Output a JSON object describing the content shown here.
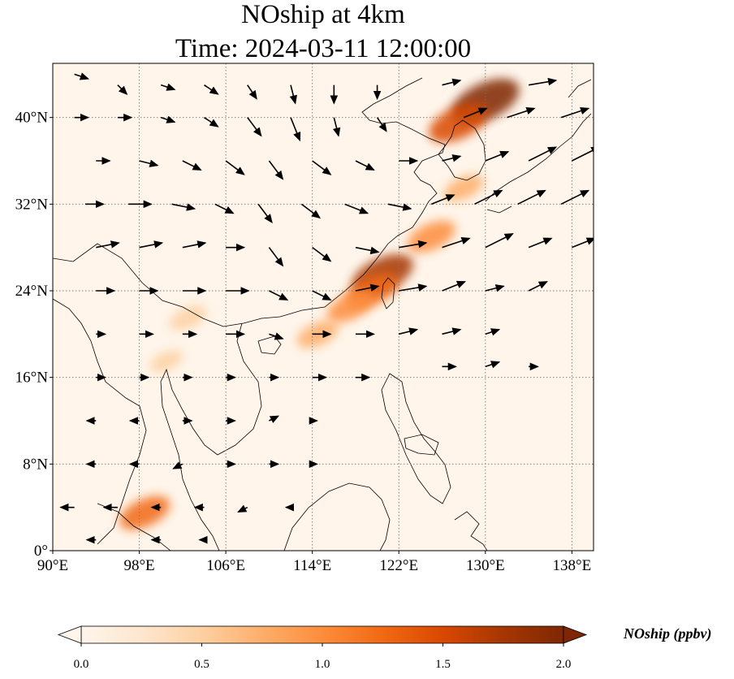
{
  "title": {
    "line1": "NOship at 4km",
    "line2": "Time: 2024-03-11 12:00:00"
  },
  "map": {
    "extent": {
      "lon": [
        90,
        140
      ],
      "lat": [
        0,
        45
      ]
    },
    "lon_ticks": [
      {
        "value": 90,
        "label": "90°E"
      },
      {
        "value": 98,
        "label": "98°E"
      },
      {
        "value": 106,
        "label": "106°E"
      },
      {
        "value": 114,
        "label": "114°E"
      },
      {
        "value": 122,
        "label": "122°E"
      },
      {
        "value": 130,
        "label": "130°E"
      },
      {
        "value": 138,
        "label": "138°E"
      }
    ],
    "lat_ticks": [
      {
        "value": 0,
        "label": "0°"
      },
      {
        "value": 8,
        "label": "8°N"
      },
      {
        "value": 16,
        "label": "16°N"
      },
      {
        "value": 24,
        "label": "24°N"
      },
      {
        "value": 32,
        "label": "32°N"
      },
      {
        "value": 40,
        "label": "40°N"
      }
    ],
    "gridlines": true,
    "field_variable": "NOship",
    "background_color": "#fff5ea",
    "hotspots": [
      {
        "lon": 130.0,
        "lat": 41.5,
        "value": 2.0
      },
      {
        "lon": 127.5,
        "lat": 39.5,
        "value": 1.6
      },
      {
        "lon": 120.5,
        "lat": 25.5,
        "value": 1.7
      },
      {
        "lon": 119.5,
        "lat": 24.0,
        "value": 1.3
      },
      {
        "lon": 117.5,
        "lat": 22.5,
        "value": 1.0
      },
      {
        "lon": 114.5,
        "lat": 20.0,
        "value": 0.8
      },
      {
        "lon": 125.0,
        "lat": 29.0,
        "value": 1.1
      },
      {
        "lon": 128.0,
        "lat": 33.5,
        "value": 0.7
      },
      {
        "lon": 98.5,
        "lat": 3.5,
        "value": 1.2
      },
      {
        "lon": 102.5,
        "lat": 21.5,
        "value": 0.6
      },
      {
        "lon": 100.5,
        "lat": 17.5,
        "value": 0.4
      }
    ],
    "wind_vectors": [
      {
        "lon": 92,
        "lat": 44,
        "u": 3,
        "v": -1
      },
      {
        "lon": 96,
        "lat": 43,
        "u": 2,
        "v": -2
      },
      {
        "lon": 100,
        "lat": 43,
        "u": 3,
        "v": -1
      },
      {
        "lon": 104,
        "lat": 43,
        "u": 3,
        "v": -2
      },
      {
        "lon": 108,
        "lat": 43,
        "u": 2,
        "v": -3
      },
      {
        "lon": 112,
        "lat": 43,
        "u": 1,
        "v": -4
      },
      {
        "lon": 116,
        "lat": 43,
        "u": 0,
        "v": -4
      },
      {
        "lon": 120,
        "lat": 43,
        "u": 0,
        "v": -3
      },
      {
        "lon": 126,
        "lat": 43,
        "u": 4,
        "v": 1
      },
      {
        "lon": 134,
        "lat": 43,
        "u": 6,
        "v": 1
      },
      {
        "lon": 92,
        "lat": 40,
        "u": 3,
        "v": 0
      },
      {
        "lon": 96,
        "lat": 40,
        "u": 3,
        "v": 0
      },
      {
        "lon": 100,
        "lat": 40,
        "u": 3,
        "v": -1
      },
      {
        "lon": 104,
        "lat": 40,
        "u": 3,
        "v": -2
      },
      {
        "lon": 108,
        "lat": 40,
        "u": 3,
        "v": -4
      },
      {
        "lon": 112,
        "lat": 40,
        "u": 2,
        "v": -5
      },
      {
        "lon": 116,
        "lat": 40,
        "u": 1,
        "v": -4
      },
      {
        "lon": 120,
        "lat": 40,
        "u": 2,
        "v": -3
      },
      {
        "lon": 128,
        "lat": 40,
        "u": 5,
        "v": 2
      },
      {
        "lon": 132,
        "lat": 40,
        "u": 6,
        "v": 2
      },
      {
        "lon": 137,
        "lat": 40,
        "u": 6,
        "v": 2
      },
      {
        "lon": 94,
        "lat": 36,
        "u": 3,
        "v": 0
      },
      {
        "lon": 98,
        "lat": 36,
        "u": 4,
        "v": -1
      },
      {
        "lon": 102,
        "lat": 36,
        "u": 4,
        "v": -2
      },
      {
        "lon": 106,
        "lat": 36,
        "u": 4,
        "v": -3
      },
      {
        "lon": 110,
        "lat": 36,
        "u": 3,
        "v": -4
      },
      {
        "lon": 114,
        "lat": 36,
        "u": 4,
        "v": -3
      },
      {
        "lon": 118,
        "lat": 36,
        "u": 4,
        "v": -2
      },
      {
        "lon": 122,
        "lat": 36,
        "u": 4,
        "v": 0
      },
      {
        "lon": 126,
        "lat": 36,
        "u": 4,
        "v": 1
      },
      {
        "lon": 130,
        "lat": 36,
        "u": 5,
        "v": 2
      },
      {
        "lon": 134,
        "lat": 36,
        "u": 6,
        "v": 3
      },
      {
        "lon": 138,
        "lat": 36,
        "u": 6,
        "v": 3
      },
      {
        "lon": 93,
        "lat": 32,
        "u": 4,
        "v": 0
      },
      {
        "lon": 97,
        "lat": 32,
        "u": 5,
        "v": 0
      },
      {
        "lon": 101,
        "lat": 32,
        "u": 5,
        "v": -1
      },
      {
        "lon": 105,
        "lat": 32,
        "u": 4,
        "v": -2
      },
      {
        "lon": 109,
        "lat": 32,
        "u": 3,
        "v": -4
      },
      {
        "lon": 113,
        "lat": 32,
        "u": 4,
        "v": -3
      },
      {
        "lon": 117,
        "lat": 32,
        "u": 5,
        "v": -2
      },
      {
        "lon": 121,
        "lat": 32,
        "u": 5,
        "v": -1
      },
      {
        "lon": 125,
        "lat": 32,
        "u": 5,
        "v": 2
      },
      {
        "lon": 129,
        "lat": 32,
        "u": 6,
        "v": 3
      },
      {
        "lon": 133,
        "lat": 32,
        "u": 6,
        "v": 3
      },
      {
        "lon": 137,
        "lat": 32,
        "u": 6,
        "v": 3
      },
      {
        "lon": 94,
        "lat": 28,
        "u": 5,
        "v": 1
      },
      {
        "lon": 98,
        "lat": 28,
        "u": 5,
        "v": 1
      },
      {
        "lon": 102,
        "lat": 28,
        "u": 5,
        "v": 1
      },
      {
        "lon": 106,
        "lat": 28,
        "u": 4,
        "v": 0
      },
      {
        "lon": 110,
        "lat": 28,
        "u": 3,
        "v": -4
      },
      {
        "lon": 114,
        "lat": 28,
        "u": 4,
        "v": -3
      },
      {
        "lon": 118,
        "lat": 28,
        "u": 5,
        "v": -1
      },
      {
        "lon": 122,
        "lat": 28,
        "u": 6,
        "v": 1
      },
      {
        "lon": 126,
        "lat": 28,
        "u": 6,
        "v": 2
      },
      {
        "lon": 130,
        "lat": 28,
        "u": 6,
        "v": 3
      },
      {
        "lon": 134,
        "lat": 28,
        "u": 5,
        "v": 2
      },
      {
        "lon": 138,
        "lat": 28,
        "u": 5,
        "v": 2
      },
      {
        "lon": 94,
        "lat": 24,
        "u": 4,
        "v": 0
      },
      {
        "lon": 98,
        "lat": 24,
        "u": 4,
        "v": 0
      },
      {
        "lon": 102,
        "lat": 24,
        "u": 5,
        "v": 0
      },
      {
        "lon": 106,
        "lat": 24,
        "u": 5,
        "v": 0
      },
      {
        "lon": 110,
        "lat": 24,
        "u": 4,
        "v": -2
      },
      {
        "lon": 114,
        "lat": 24,
        "u": 4,
        "v": -2
      },
      {
        "lon": 118,
        "lat": 24,
        "u": 5,
        "v": 1
      },
      {
        "lon": 122,
        "lat": 24,
        "u": 6,
        "v": 1
      },
      {
        "lon": 126,
        "lat": 24,
        "u": 5,
        "v": 2
      },
      {
        "lon": 130,
        "lat": 24,
        "u": 4,
        "v": 1
      },
      {
        "lon": 134,
        "lat": 24,
        "u": 4,
        "v": 2
      },
      {
        "lon": 94,
        "lat": 20,
        "u": 2,
        "v": 0
      },
      {
        "lon": 98,
        "lat": 20,
        "u": 3,
        "v": 0
      },
      {
        "lon": 102,
        "lat": 20,
        "u": 3,
        "v": 0
      },
      {
        "lon": 106,
        "lat": 20,
        "u": 4,
        "v": 0
      },
      {
        "lon": 110,
        "lat": 20,
        "u": 3,
        "v": -1
      },
      {
        "lon": 114,
        "lat": 20,
        "u": 4,
        "v": 0
      },
      {
        "lon": 118,
        "lat": 20,
        "u": 4,
        "v": 0
      },
      {
        "lon": 122,
        "lat": 20,
        "u": 4,
        "v": 1
      },
      {
        "lon": 126,
        "lat": 20,
        "u": 4,
        "v": 1
      },
      {
        "lon": 130,
        "lat": 20,
        "u": 3,
        "v": 1
      },
      {
        "lon": 94,
        "lat": 16,
        "u": 2,
        "v": 0
      },
      {
        "lon": 98,
        "lat": 16,
        "u": 2,
        "v": 0
      },
      {
        "lon": 102,
        "lat": 16,
        "u": 2,
        "v": 0
      },
      {
        "lon": 106,
        "lat": 16,
        "u": 2,
        "v": 0
      },
      {
        "lon": 110,
        "lat": 16,
        "u": 2,
        "v": 0
      },
      {
        "lon": 114,
        "lat": 16,
        "u": 3,
        "v": 0
      },
      {
        "lon": 118,
        "lat": 16,
        "u": 3,
        "v": 0
      },
      {
        "lon": 126,
        "lat": 17,
        "u": 3,
        "v": 0
      },
      {
        "lon": 130,
        "lat": 17,
        "u": 3,
        "v": 1
      },
      {
        "lon": 134,
        "lat": 17,
        "u": 2,
        "v": 0
      },
      {
        "lon": 94,
        "lat": 12,
        "u": -2,
        "v": 0
      },
      {
        "lon": 98,
        "lat": 12,
        "u": -2,
        "v": 0
      },
      {
        "lon": 102,
        "lat": 12,
        "u": 2,
        "v": 0
      },
      {
        "lon": 106,
        "lat": 12,
        "u": 2,
        "v": 0
      },
      {
        "lon": 110,
        "lat": 12,
        "u": 2,
        "v": 1
      },
      {
        "lon": 114,
        "lat": 12,
        "u": 1,
        "v": 0
      },
      {
        "lon": 94,
        "lat": 8,
        "u": -2,
        "v": 0
      },
      {
        "lon": 98,
        "lat": 8,
        "u": -2,
        "v": 0
      },
      {
        "lon": 102,
        "lat": 8,
        "u": -2,
        "v": -1
      },
      {
        "lon": 106,
        "lat": 8,
        "u": 2,
        "v": 0
      },
      {
        "lon": 110,
        "lat": 8,
        "u": 2,
        "v": 0
      },
      {
        "lon": 114,
        "lat": 8,
        "u": 1,
        "v": 0
      },
      {
        "lon": 92,
        "lat": 4,
        "u": -3,
        "v": 0
      },
      {
        "lon": 96,
        "lat": 4,
        "u": -3,
        "v": 0
      },
      {
        "lon": 100,
        "lat": 4,
        "u": -2,
        "v": 0
      },
      {
        "lon": 104,
        "lat": 4,
        "u": -2,
        "v": 0
      },
      {
        "lon": 108,
        "lat": 4,
        "u": -2,
        "v": -1
      },
      {
        "lon": 112,
        "lat": 4,
        "u": -1,
        "v": 0
      },
      {
        "lon": 94,
        "lat": 1,
        "u": -2,
        "v": 0
      },
      {
        "lon": 100,
        "lat": 1,
        "u": -2,
        "v": 0
      },
      {
        "lon": 104,
        "lat": 1,
        "u": -1,
        "v": 0
      }
    ],
    "coast_color": "#000000"
  },
  "colorbar": {
    "label": "NOship (ppbv)",
    "min": 0.0,
    "max": 2.0,
    "ticks": [
      "0.0",
      "0.5",
      "1.0",
      "1.5",
      "2.0"
    ],
    "colors": [
      "#fff5eb",
      "#fee6ce",
      "#fdd0a2",
      "#fdae6b",
      "#fd8d3c",
      "#f16913",
      "#d94801",
      "#a63603",
      "#7f2704"
    ],
    "extend": "both"
  }
}
